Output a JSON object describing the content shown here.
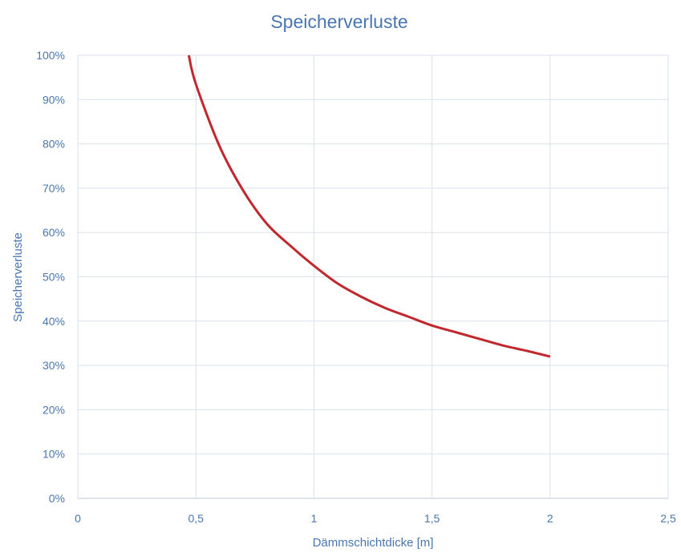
{
  "chart_data": {
    "type": "line",
    "title": "Speicherverluste",
    "xlabel": "Dämmschichtdicke [m]",
    "ylabel": "Speicherverluste",
    "xlim": [
      0,
      2.5
    ],
    "ylim": [
      0,
      100
    ],
    "x_ticks": [
      "0",
      "0,5",
      "1",
      "1,5",
      "2",
      "2,5"
    ],
    "y_ticks": [
      "0%",
      "10%",
      "20%",
      "30%",
      "40%",
      "50%",
      "60%",
      "70%",
      "80%",
      "90%",
      "100%"
    ],
    "grid": true,
    "series": [
      {
        "color": "#c0282e",
        "x": [
          0.47,
          0.5,
          0.6,
          0.7,
          0.8,
          0.9,
          1.0,
          1.1,
          1.2,
          1.3,
          1.4,
          1.5,
          1.6,
          1.7,
          1.8,
          1.9,
          2.0
        ],
        "y": [
          100,
          93.5,
          79.5,
          69.5,
          62,
          57,
          52.5,
          48.5,
          45.5,
          43,
          41,
          39,
          37.5,
          36,
          34.5,
          33.3,
          32
        ]
      }
    ]
  }
}
